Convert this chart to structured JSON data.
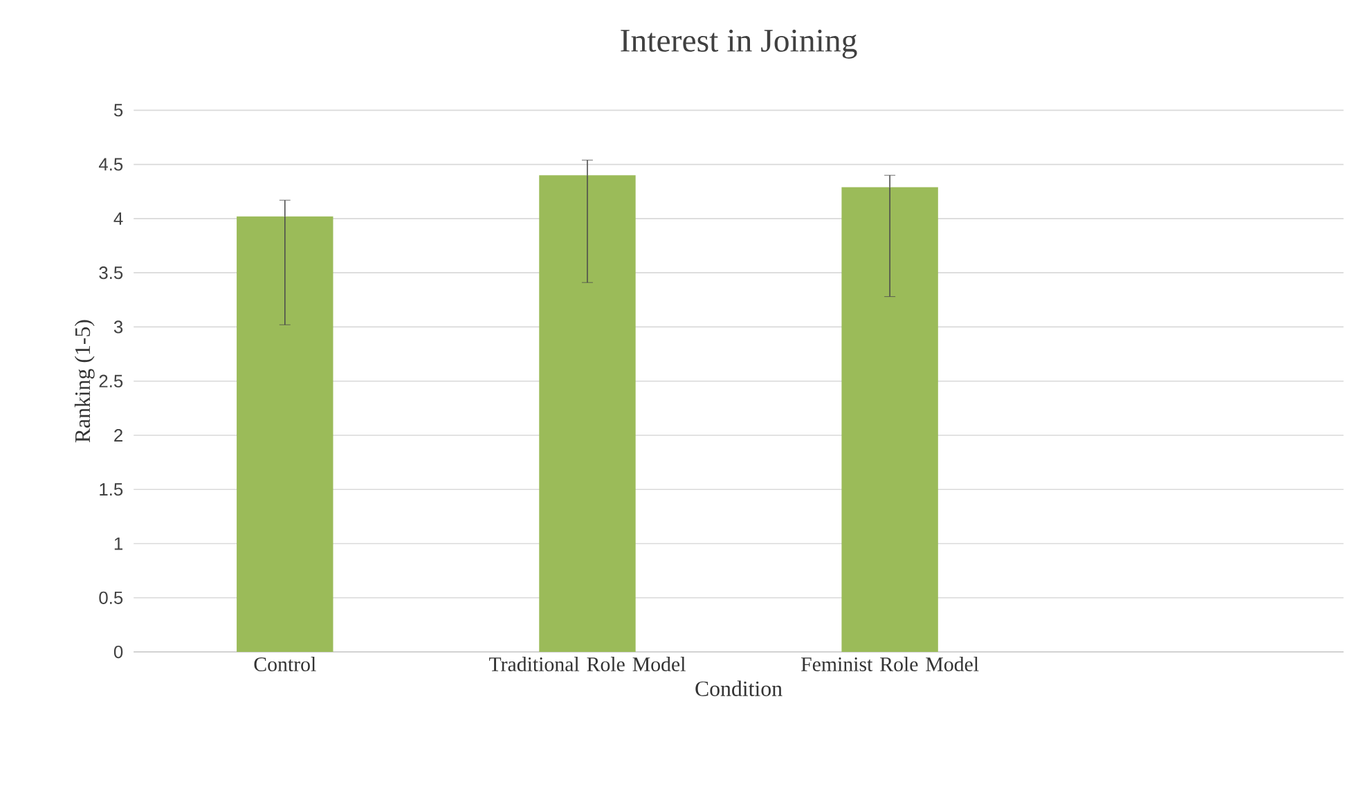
{
  "chart_data": {
    "type": "bar",
    "title": "Interest in Joining",
    "xlabel": "Condition",
    "ylabel": "Ranking (1-5)",
    "categories": [
      "Control",
      "Traditional Role Model",
      "Feminist Role Model",
      null
    ],
    "values": [
      4.02,
      4.4,
      4.29,
      null
    ],
    "errors": [
      [
        3.02,
        4.17
      ],
      [
        3.41,
        4.54
      ],
      [
        3.28,
        4.4
      ],
      null
    ],
    "color": "#9bbb59",
    "ylim": [
      0,
      5
    ],
    "yticks": [
      0,
      0.5,
      1,
      1.5,
      2,
      2.5,
      3,
      3.5,
      4,
      4.5,
      5
    ],
    "grid": "y"
  }
}
